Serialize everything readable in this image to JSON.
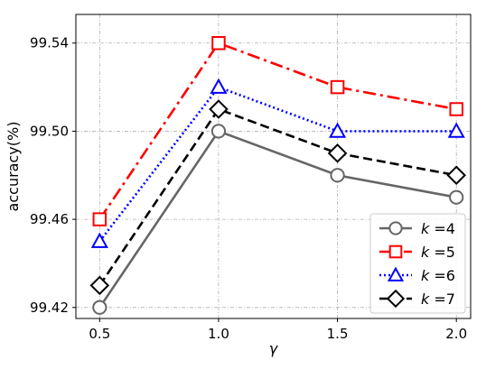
{
  "chart_data": {
    "type": "line",
    "title": "",
    "xlabel": "γ",
    "ylabel": "accuracy(%)",
    "x": [
      0.5,
      1.0,
      1.5,
      2.0
    ],
    "x_tick_labels": [
      "0.5",
      "1.0",
      "1.5",
      "2.0"
    ],
    "y_ticks": [
      99.42,
      99.46,
      99.5,
      99.54
    ],
    "y_tick_labels": [
      "99.42",
      "99.46",
      "99.50",
      "99.54"
    ],
    "xlim": [
      0.4,
      2.06
    ],
    "ylim": [
      99.415,
      99.553
    ],
    "grid": true,
    "legend_position": "lower-right",
    "series": [
      {
        "name": "k =4",
        "label_var": "k",
        "label_rest": " =4",
        "color": "#666666",
        "linestyle": "solid",
        "marker": "circle",
        "values": [
          99.42,
          99.5,
          99.48,
          99.47
        ]
      },
      {
        "name": "k =5",
        "label_var": "k",
        "label_rest": " =5",
        "color": "#ff0000",
        "linestyle": "dashdot",
        "marker": "square",
        "values": [
          99.46,
          99.54,
          99.52,
          99.51
        ]
      },
      {
        "name": "k =6",
        "label_var": "k",
        "label_rest": " =6",
        "color": "#0000ff",
        "linestyle": "dotted",
        "marker": "triangle",
        "values": [
          99.45,
          99.52,
          99.5,
          99.5
        ]
      },
      {
        "name": "k =7",
        "label_var": "k",
        "label_rest": " =7",
        "color": "#000000",
        "linestyle": "dashed",
        "marker": "diamond",
        "values": [
          99.43,
          99.51,
          99.49,
          99.48
        ]
      }
    ]
  }
}
